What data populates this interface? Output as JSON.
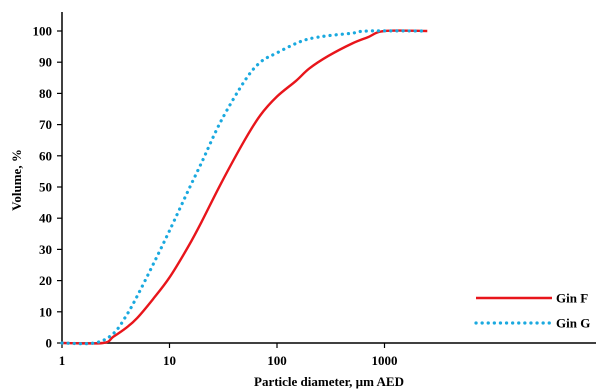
{
  "chart_data": {
    "type": "line",
    "title": "",
    "xlabel": "Particle diameter, µm AED",
    "ylabel": "Volume, %",
    "x_scale": "log",
    "xlim": [
      1,
      2500
    ],
    "ylim": [
      0,
      105
    ],
    "x_ticks": [
      "1",
      "10",
      "100",
      "1000"
    ],
    "y_ticks": [
      "0",
      "10",
      "20",
      "30",
      "40",
      "50",
      "60",
      "70",
      "80",
      "90",
      "100"
    ],
    "grid": false,
    "legend_position": "bottom-right",
    "series": [
      {
        "name": "Gin F",
        "color": "#e8151b",
        "style": "solid",
        "points": [
          [
            1,
            0
          ],
          [
            2.4,
            0
          ],
          [
            3,
            2
          ],
          [
            4,
            5
          ],
          [
            5,
            8
          ],
          [
            7,
            14
          ],
          [
            10,
            21
          ],
          [
            15,
            31
          ],
          [
            20,
            39
          ],
          [
            30,
            51
          ],
          [
            50,
            65
          ],
          [
            70,
            73
          ],
          [
            100,
            79
          ],
          [
            150,
            84
          ],
          [
            200,
            88
          ],
          [
            300,
            92
          ],
          [
            500,
            96
          ],
          [
            700,
            98
          ],
          [
            1000,
            100
          ],
          [
            2500,
            100
          ]
        ]
      },
      {
        "name": "Gin G",
        "color": "#1aa9df",
        "style": "dotted",
        "points": [
          [
            1,
            0
          ],
          [
            2,
            0
          ],
          [
            3,
            3
          ],
          [
            4,
            9
          ],
          [
            5,
            15
          ],
          [
            7,
            25
          ],
          [
            10,
            36
          ],
          [
            15,
            49
          ],
          [
            20,
            58
          ],
          [
            30,
            71
          ],
          [
            50,
            84
          ],
          [
            70,
            90
          ],
          [
            100,
            93
          ],
          [
            150,
            96
          ],
          [
            200,
            97.5
          ],
          [
            300,
            98.5
          ],
          [
            500,
            99.3
          ],
          [
            700,
            100
          ],
          [
            2500,
            100
          ]
        ]
      }
    ]
  }
}
